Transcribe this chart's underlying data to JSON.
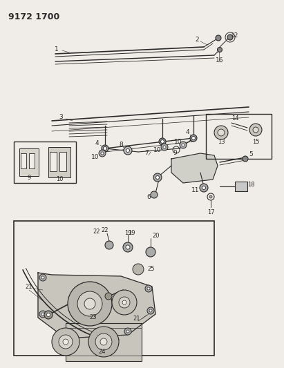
{
  "title": "9172 1700",
  "bg_color": "#f0ede8",
  "line_color": "#2a2a2a",
  "figsize": [
    4.11,
    5.33
  ],
  "dpi": 100
}
